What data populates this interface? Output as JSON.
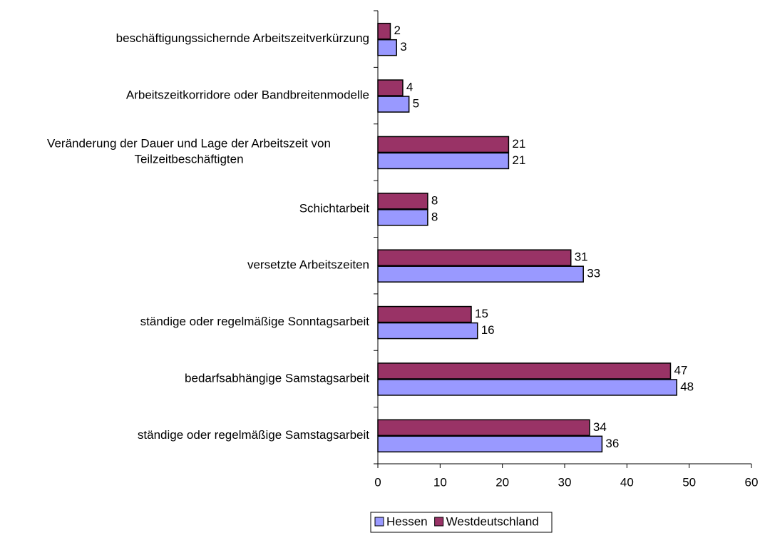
{
  "chart_data": {
    "type": "bar",
    "orientation": "horizontal",
    "categories": [
      "beschäftigungssichernde Arbeitszeitverkürzung",
      "Arbeitszeitkorridore oder Bandbreitenmodelle",
      "Veränderung der Dauer und Lage der Arbeitszeit von Teilzeitbeschäftigten",
      "Schichtarbeit",
      "versetzte Arbeitszeiten",
      "ständige oder regelmäßige Sonntagsarbeit",
      "bedarfsabhängige Samstagsarbeit",
      "ständige oder regelmäßige Samstagsarbeit"
    ],
    "series": [
      {
        "name": "Westdeutschland",
        "color": "#993366",
        "values": [
          2,
          4,
          21,
          8,
          31,
          15,
          47,
          34
        ]
      },
      {
        "name": "Hessen",
        "color": "#9999ff",
        "values": [
          3,
          5,
          21,
          8,
          33,
          16,
          48,
          36
        ]
      }
    ],
    "xlim": [
      0,
      60
    ],
    "xticks": [
      0,
      10,
      20,
      30,
      40,
      50,
      60
    ],
    "legend": "bottom"
  }
}
